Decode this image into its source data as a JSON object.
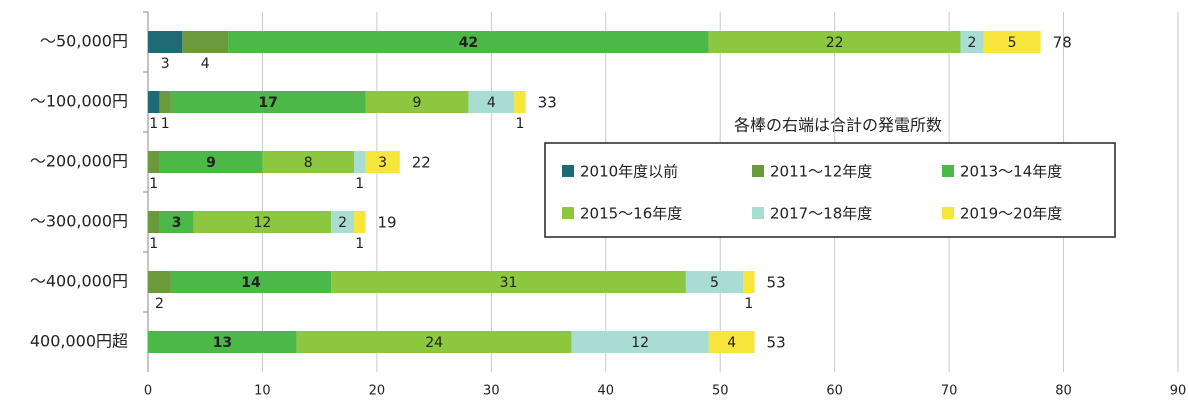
{
  "chart_data": {
    "type": "stacked-bar-horizontal",
    "annotation": "各棒の右端は合計の発電所数",
    "categories": [
      "～50,000円",
      "～100,000円",
      "～200,000円",
      "～300,000円",
      "～400,000円",
      "400,000円超"
    ],
    "series": [
      {
        "name": "2010年度以前",
        "color": "#1f6b75",
        "values": [
          3,
          1,
          null,
          null,
          null,
          null
        ]
      },
      {
        "name": "2011～12年度",
        "color": "#6b9a3c",
        "values": [
          4,
          1,
          1,
          1,
          2,
          null
        ]
      },
      {
        "name": "2013～14年度",
        "color": "#4cb848",
        "values": [
          42,
          17,
          9,
          3,
          14,
          13
        ]
      },
      {
        "name": "2015～16年度",
        "color": "#8dc63f",
        "values": [
          22,
          9,
          8,
          12,
          31,
          24
        ]
      },
      {
        "name": "2017～18年度",
        "color": "#a9dcd2",
        "values": [
          2,
          4,
          1,
          2,
          5,
          12
        ]
      },
      {
        "name": "2019～20年度",
        "color": "#f6e53a",
        "values": [
          5,
          1,
          3,
          1,
          1,
          4
        ]
      }
    ],
    "totals": [
      78,
      33,
      22,
      19,
      53,
      53
    ],
    "xlim": [
      0,
      90
    ],
    "xticks": [
      0,
      10,
      20,
      30,
      40,
      50,
      60,
      70,
      80,
      90
    ],
    "grid": true
  }
}
